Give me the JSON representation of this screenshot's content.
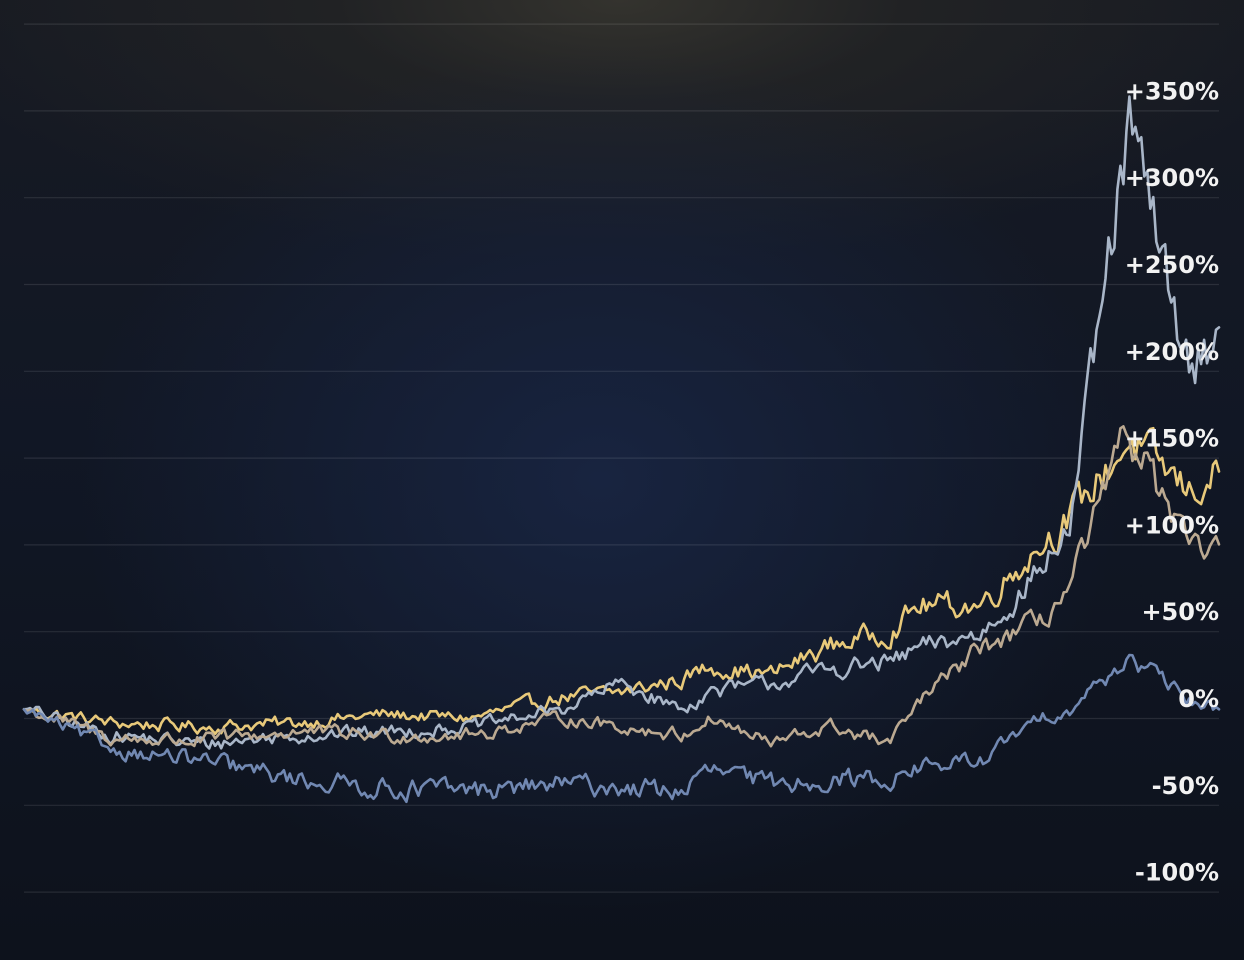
{
  "chart_data": {
    "type": "line",
    "title": "",
    "xlabel": "",
    "ylabel": "",
    "y_unit": "%",
    "ylim": [
      -100,
      400
    ],
    "yticks": [
      {
        "value": 350,
        "label": "+350%"
      },
      {
        "value": 300,
        "label": "+300%"
      },
      {
        "value": 250,
        "label": "+250%"
      },
      {
        "value": 200,
        "label": "+200%"
      },
      {
        "value": 150,
        "label": "+150%"
      },
      {
        "value": 100,
        "label": "+100%"
      },
      {
        "value": 50,
        "label": "+50%"
      },
      {
        "value": 0,
        "label": "0%"
      },
      {
        "value": -50,
        "label": "-50%"
      },
      {
        "value": -100,
        "label": "-100%"
      }
    ],
    "grid": true,
    "legend": "none",
    "x": [
      0,
      15,
      30,
      45,
      60,
      75,
      90,
      100,
      110,
      115,
      125,
      135,
      145,
      150,
      160,
      170,
      175,
      185,
      195,
      200
    ],
    "series": [
      {
        "color": "#e8c97a",
        "values": [
          5,
          -3,
          -5,
          -3,
          2,
          0,
          12,
          15,
          22,
          30,
          25,
          42,
          50,
          65,
          65,
          100,
          115,
          160,
          130,
          142
        ]
      },
      {
        "color": "#a9b6c8",
        "values": [
          5,
          -10,
          -15,
          -10,
          -8,
          -5,
          5,
          20,
          5,
          15,
          20,
          28,
          32,
          40,
          48,
          85,
          110,
          340,
          200,
          225
        ]
      },
      {
        "color": "#bba991",
        "values": [
          5,
          -12,
          -13,
          -8,
          -10,
          -10,
          0,
          -5,
          -10,
          0,
          -15,
          -5,
          -15,
          10,
          40,
          55,
          75,
          165,
          95,
          100
        ]
      },
      {
        "color": "#7188b2",
        "values": [
          5,
          -18,
          -25,
          -35,
          -40,
          -42,
          -38,
          -40,
          -42,
          -30,
          -38,
          -35,
          -35,
          -28,
          -25,
          0,
          5,
          35,
          10,
          5
        ]
      }
    ]
  }
}
